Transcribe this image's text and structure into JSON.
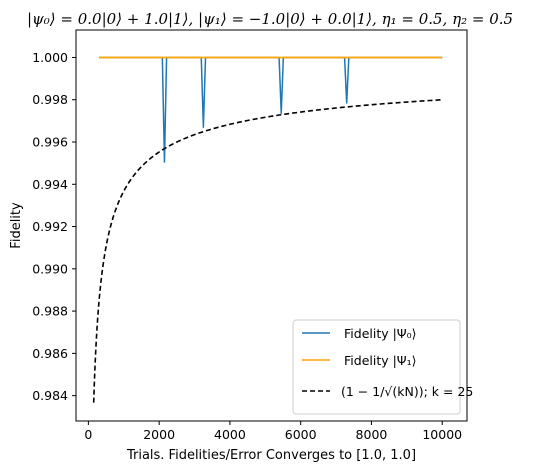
{
  "chart_data": {
    "type": "line",
    "title": "|ψ₀⟩ = 0.0|0⟩ + 1.0|1⟩, |ψ₁⟩ = −1.0|0⟩ + 0.0|1⟩, η₁ = 0.5, η₂ = 0.5",
    "xlabel": "Trials. Fidelities/Error Converges to [1.0, 1.0]",
    "ylabel": "Fidelity",
    "xlim": [
      -350,
      10700
    ],
    "ylim": [
      0.9828,
      1.0013
    ],
    "x_ticks": [
      0,
      2000,
      4000,
      6000,
      8000,
      10000
    ],
    "x_tick_labels": [
      "0",
      "2000",
      "4000",
      "6000",
      "8000",
      "10000"
    ],
    "y_ticks": [
      0.984,
      0.986,
      0.988,
      0.99,
      0.992,
      0.994,
      0.996,
      0.998,
      1.0
    ],
    "y_tick_labels": [
      "0.984",
      "0.986",
      "0.988",
      "0.990",
      "0.992",
      "0.994",
      "0.996",
      "0.998",
      "1.000"
    ],
    "grid": false,
    "legend_position": "lower-right",
    "series": [
      {
        "name": "Fidelity |Ψ₀⟩",
        "color": "#1f77b4",
        "style": "solid",
        "x_range": [
          300,
          10000
        ],
        "baseline": 1.0,
        "dips": [
          {
            "x": 2150,
            "y": 0.99505
          },
          {
            "x": 3250,
            "y": 0.9967
          },
          {
            "x": 5450,
            "y": 0.99735
          },
          {
            "x": 7300,
            "y": 0.99785
          }
        ]
      },
      {
        "name": "Fidelity |Ψ₁⟩",
        "color": "#ffa500",
        "style": "solid",
        "x_range": [
          300,
          10000
        ],
        "baseline": 1.0
      },
      {
        "name": "(1 − 1/√(kN)); k = 25",
        "color": "#000000",
        "style": "dashed",
        "k": 25,
        "x_range": [
          150,
          10000
        ]
      }
    ],
    "legend_entries": [
      {
        "label": "Fidelity |Ψ₀⟩",
        "color": "#1f77b4",
        "style": "solid"
      },
      {
        "label": "Fidelity |Ψ₁⟩",
        "color": "#ffa500",
        "style": "solid"
      },
      {
        "label": "(1 − 1/√(kN)); k = 25",
        "color": "#000000",
        "style": "dashed"
      }
    ]
  }
}
